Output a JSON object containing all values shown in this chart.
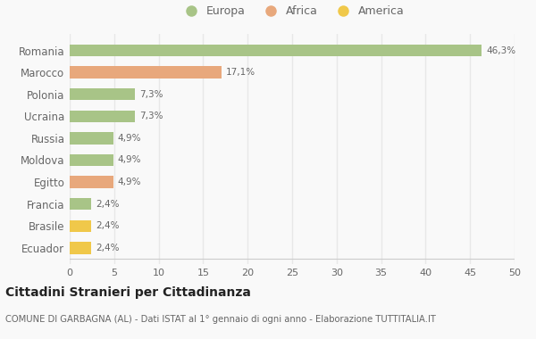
{
  "categories": [
    "Romania",
    "Marocco",
    "Polonia",
    "Ucraina",
    "Russia",
    "Moldova",
    "Egitto",
    "Francia",
    "Brasile",
    "Ecuador"
  ],
  "values": [
    46.3,
    17.1,
    7.3,
    7.3,
    4.9,
    4.9,
    4.9,
    2.4,
    2.4,
    2.4
  ],
  "labels": [
    "46,3%",
    "17,1%",
    "7,3%",
    "7,3%",
    "4,9%",
    "4,9%",
    "4,9%",
    "2,4%",
    "2,4%",
    "2,4%"
  ],
  "colors": [
    "#a8c487",
    "#e8a87c",
    "#a8c487",
    "#a8c487",
    "#a8c487",
    "#a8c487",
    "#e8a87c",
    "#a8c487",
    "#f0c84a",
    "#f0c84a"
  ],
  "legend": [
    {
      "label": "Europa",
      "color": "#a8c487"
    },
    {
      "label": "Africa",
      "color": "#e8a87c"
    },
    {
      "label": "America",
      "color": "#f0c84a"
    }
  ],
  "xlim": [
    0,
    50
  ],
  "xticks": [
    0,
    5,
    10,
    15,
    20,
    25,
    30,
    35,
    40,
    45,
    50
  ],
  "title": "Cittadini Stranieri per Cittadinanza",
  "subtitle": "COMUNE DI GARBAGNA (AL) - Dati ISTAT al 1° gennaio di ogni anno - Elaborazione TUTTITALIA.IT",
  "bg_color": "#f9f9f9",
  "grid_color": "#e8e8e8",
  "bar_height": 0.55
}
